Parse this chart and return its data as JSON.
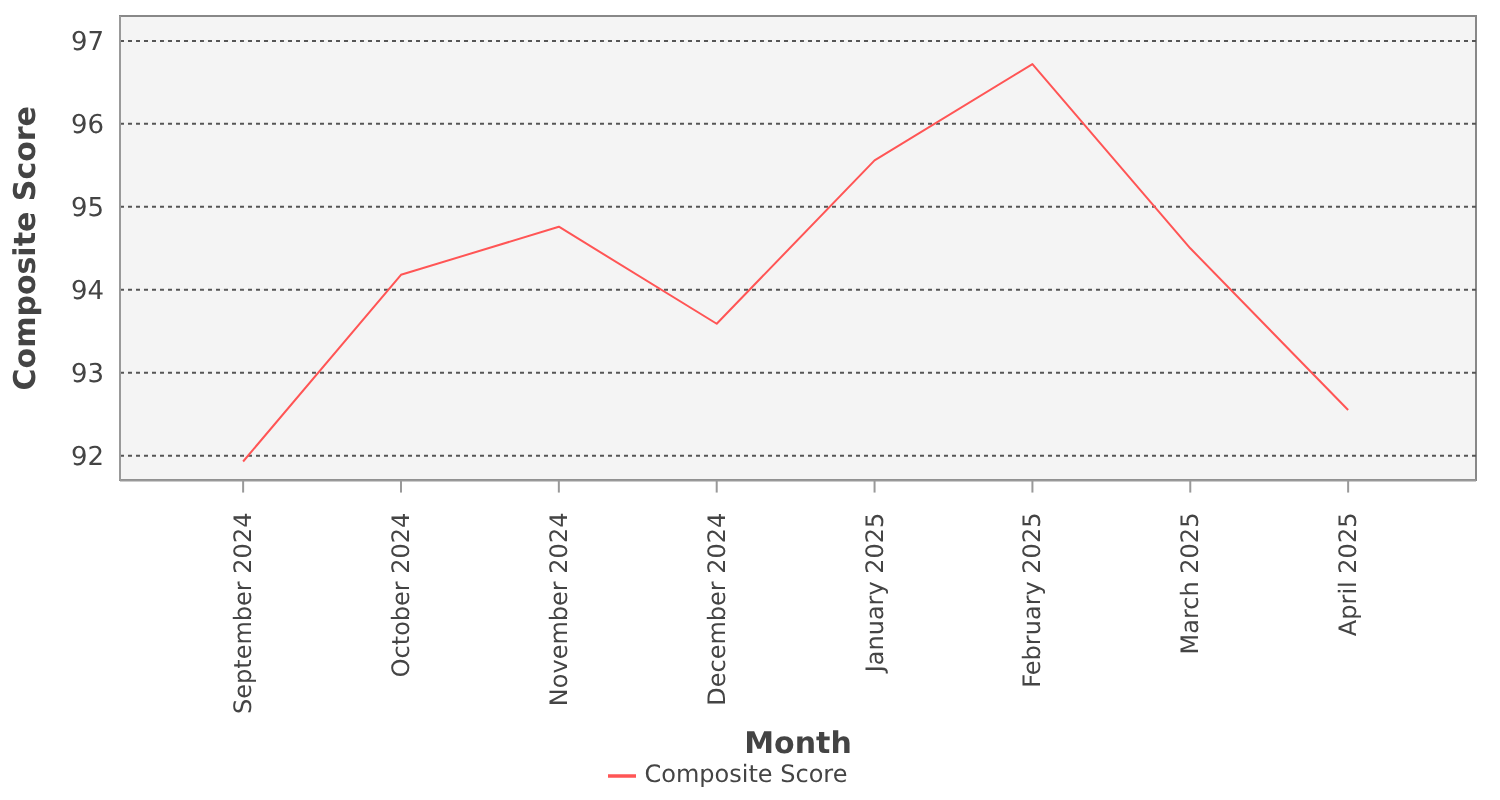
{
  "chart_data": {
    "type": "line",
    "xlabel": "Month",
    "ylabel": "Composite Score",
    "categories": [
      "September 2024",
      "October 2024",
      "November 2024",
      "December 2024",
      "January 2025",
      "February 2025",
      "March 2025",
      "April 2025"
    ],
    "series": [
      {
        "name": "Composite Score",
        "color": "#ff5555",
        "values": [
          91.93,
          94.18,
          94.76,
          93.59,
          95.56,
          96.72,
          94.5,
          92.55
        ]
      }
    ],
    "ylim": [
      91.7,
      97.3
    ],
    "yticks": [
      92,
      93,
      94,
      95,
      96,
      97
    ],
    "grid": "y",
    "legend": "bottom",
    "marker": "none",
    "line_style": "solid"
  }
}
